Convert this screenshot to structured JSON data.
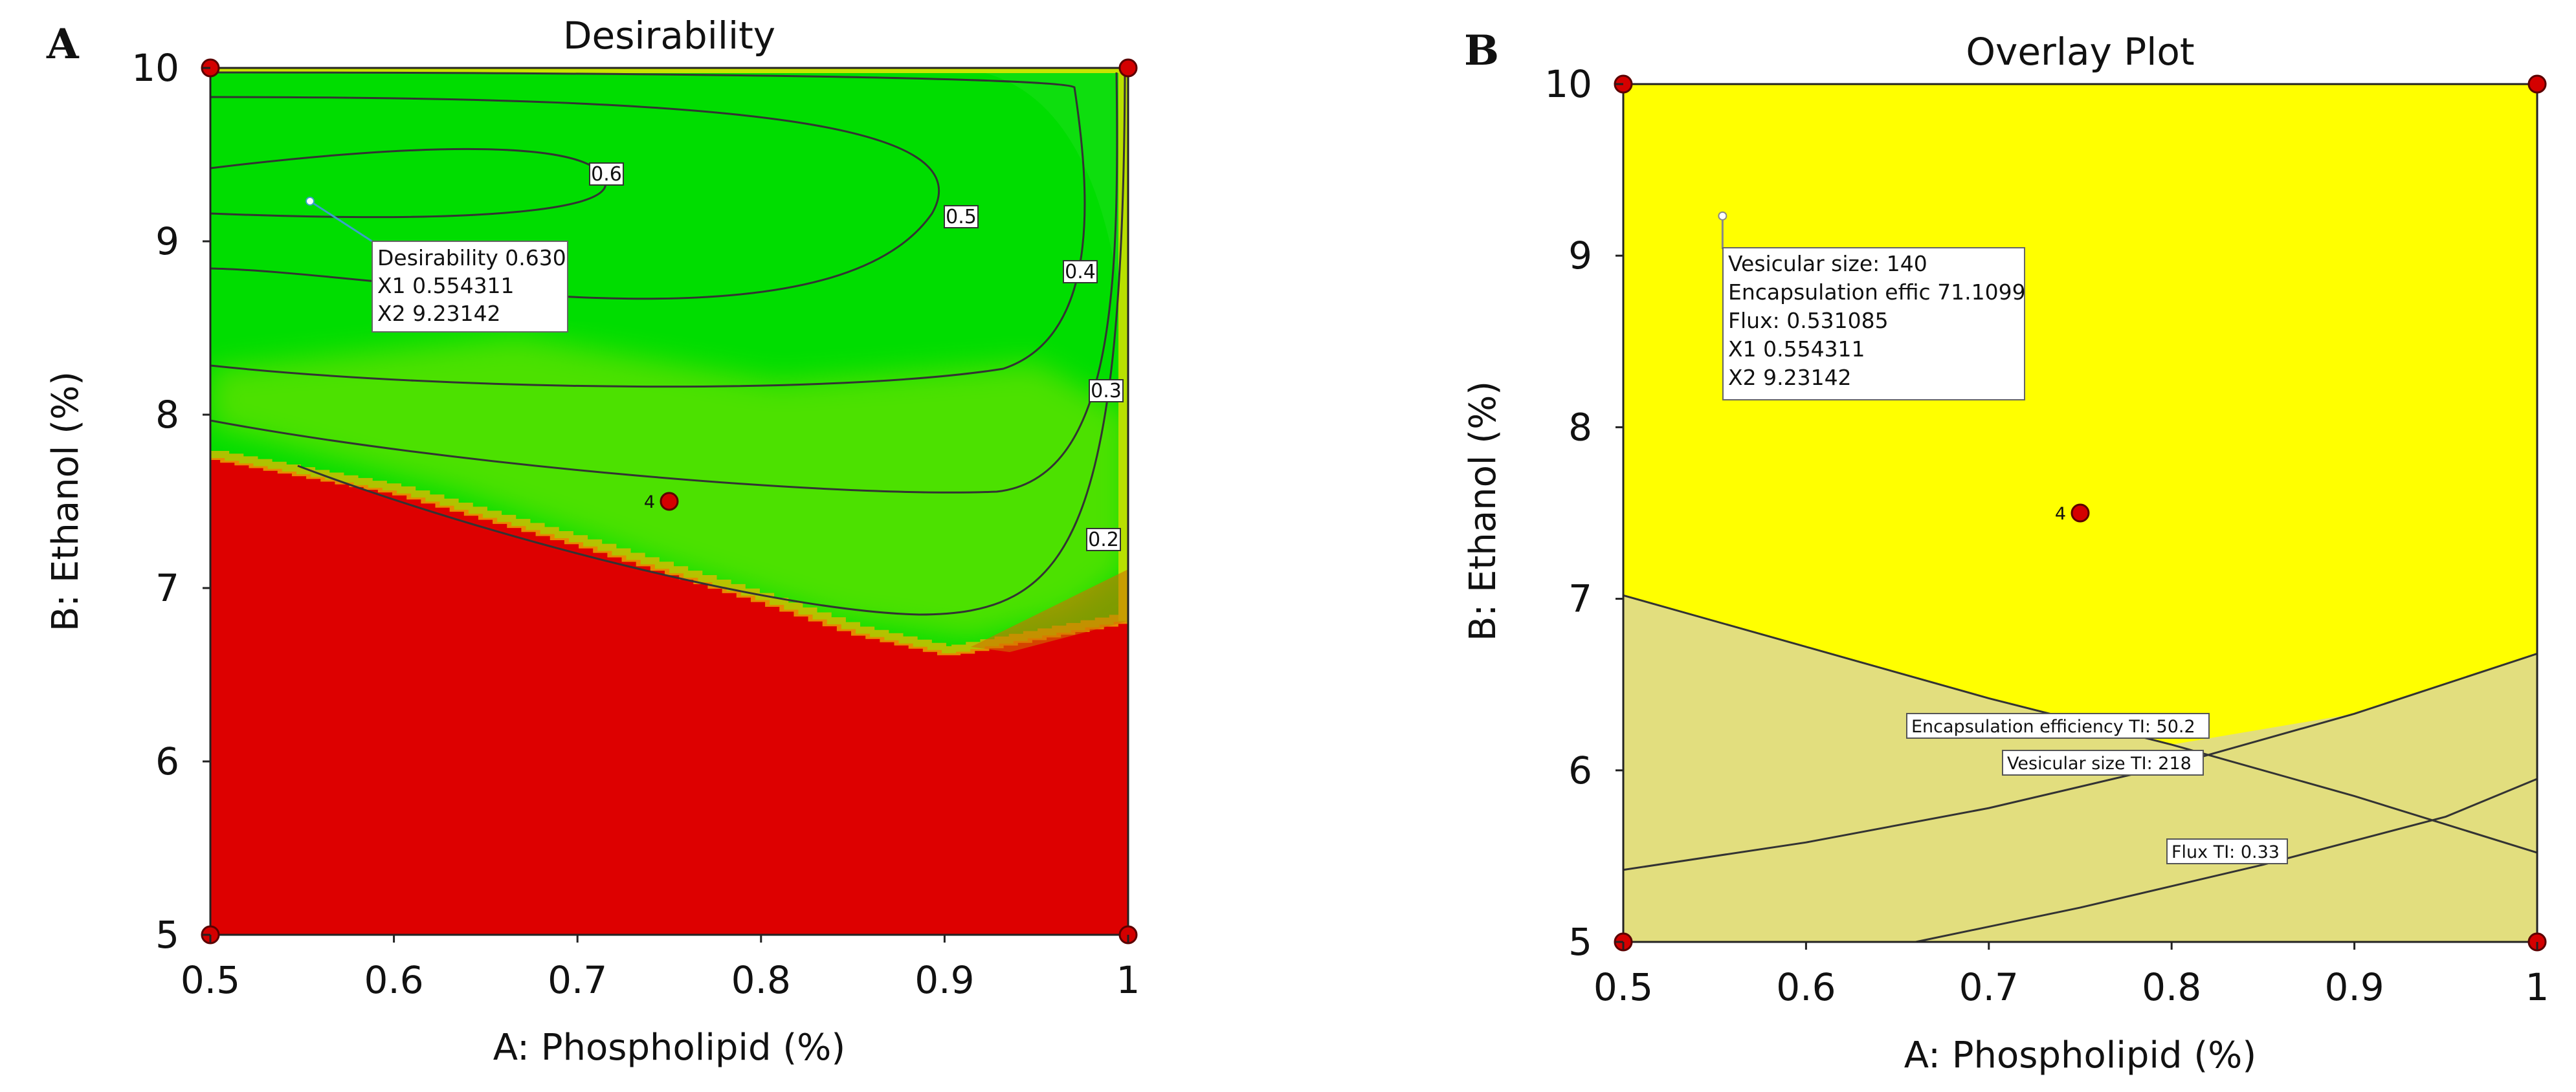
{
  "chart_data": [
    {
      "type": "heatmap",
      "panel": "A",
      "title": "Desirability",
      "xlabel": "A: Phospholipid  (%)",
      "ylabel": "B: Ethanol  (%)",
      "xlim": [
        0.5,
        1
      ],
      "ylim": [
        5,
        10
      ],
      "x_ticks": [
        "0.5",
        "0.6",
        "0.7",
        "0.8",
        "0.9",
        "1"
      ],
      "y_ticks": [
        "5",
        "6",
        "7",
        "8",
        "9",
        "10"
      ],
      "contour_levels": [
        "0.6",
        "0.5",
        "0.4",
        "0.3",
        "0.2"
      ],
      "design_points": [
        {
          "x": 0.5,
          "y": 10
        },
        {
          "x": 1,
          "y": 10
        },
        {
          "x": 0.5,
          "y": 5
        },
        {
          "x": 1,
          "y": 5
        },
        {
          "x": 0.75,
          "y": 7.5,
          "label": "4"
        }
      ],
      "optimum": {
        "x": 0.554311,
        "y": 9.23142
      },
      "optimum_box": [
        "Desirability  0.630",
        "X1  0.554311",
        "X2  9.23142"
      ],
      "colors": {
        "high": "#00dd00",
        "low": "#dd0000",
        "transition": "#c8e000"
      }
    },
    {
      "type": "area",
      "panel": "B",
      "title": "Overlay Plot",
      "xlabel": "A: Phospholipid  (%)",
      "ylabel": "B: Ethanol  (%)",
      "xlim": [
        0.5,
        1
      ],
      "ylim": [
        5,
        10
      ],
      "x_ticks": [
        "0.5",
        "0.6",
        "0.7",
        "0.8",
        "0.9",
        "1"
      ],
      "y_ticks": [
        "5",
        "6",
        "7",
        "8",
        "9",
        "10"
      ],
      "constraints": [
        {
          "label": "Encapsulation efficiency TI:  50.2",
          "x": [
            0.5,
            0.6,
            0.7,
            0.8,
            0.9,
            1
          ],
          "y": [
            7.02,
            6.72,
            6.42,
            6.15,
            5.85,
            5.52
          ]
        },
        {
          "label": "Vesicular size TI:  218",
          "x": [
            0.5,
            0.6,
            0.7,
            0.8,
            0.9,
            1
          ],
          "y": [
            5.42,
            5.58,
            5.78,
            6.03,
            6.33,
            6.68
          ]
        },
        {
          "label": "Flux TI:  0.33",
          "x": [
            0.66,
            0.75,
            0.85,
            0.95,
            1
          ],
          "y": [
            5,
            5.2,
            5.45,
            5.73,
            5.95
          ]
        }
      ],
      "design_points": [
        {
          "x": 0.5,
          "y": 10
        },
        {
          "x": 1,
          "y": 10
        },
        {
          "x": 0.5,
          "y": 5
        },
        {
          "x": 1,
          "y": 5
        },
        {
          "x": 0.75,
          "y": 7.5,
          "label": "4"
        }
      ],
      "optimum": {
        "x": 0.554311,
        "y": 9.23142
      },
      "optimum_box": [
        "Vesicular size:   140",
        "Encapsulation effic  71.1099",
        "Flux:    0.531085",
        "X1  0.554311",
        "X2  9.23142"
      ],
      "colors": {
        "feasible": "#ffff00",
        "infeasible": "#e2de7e"
      }
    }
  ]
}
